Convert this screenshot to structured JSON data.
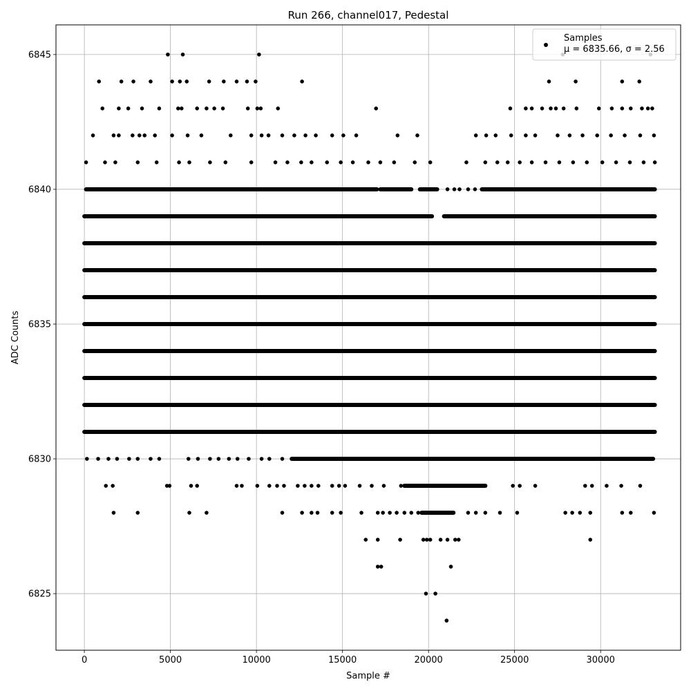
{
  "chart_data": {
    "type": "scatter",
    "title": "Run 266, channel017, Pedestal",
    "xlabel": "Sample #",
    "ylabel": "ADC Counts",
    "xlim": [
      -1650,
      34650
    ],
    "ylim": [
      6822.9,
      6846.1
    ],
    "x_ticks": [
      0,
      5000,
      10000,
      15000,
      20000,
      25000,
      30000
    ],
    "x_tick_labels": [
      "0",
      "5000",
      "10000",
      "15000",
      "20000",
      "25000",
      "30000"
    ],
    "y_ticks": [
      6825,
      6830,
      6835,
      6840,
      6845
    ],
    "y_tick_labels": [
      "6825",
      "6830",
      "6835",
      "6840",
      "6845"
    ],
    "grid": true,
    "legend_position": "top-right",
    "marker_color": "#000000",
    "series": [
      {
        "name": "Samples",
        "n_samples": 33000,
        "band_segments": [
          {
            "y": 6845,
            "x": [
              4850,
              5720,
              10150,
              27800,
              32900
            ]
          },
          {
            "y": 6844,
            "x": [
              850,
              2150,
              2850,
              3850,
              5100,
              5550,
              5950,
              7250,
              8100,
              8850,
              9450,
              9950,
              12650,
              27000,
              28550,
              31250,
              32250
            ]
          },
          {
            "y": 6843,
            "x": [
              1050,
              2000,
              2550,
              3350,
              4350,
              5450,
              5650,
              6550,
              7100,
              7550,
              8050,
              9500,
              10050,
              10250,
              11250,
              16950,
              24750,
              25650,
              26000,
              26600,
              27100,
              27400,
              27850,
              28600,
              29900,
              30650,
              31250,
              31750,
              32400,
              32750,
              33000
            ]
          },
          {
            "y": 6842,
            "x": [
              500,
              1700,
              2000,
              2800,
              3200,
              3500,
              4100,
              5100,
              6000,
              6800,
              8500,
              9700,
              10300,
              10700,
              11500,
              12200,
              12850,
              13450,
              14400,
              15050,
              15800,
              18200,
              19350,
              22750,
              23350,
              23900,
              24800,
              25650,
              26200,
              27500,
              28200,
              28950,
              29800,
              30600,
              31400,
              32300,
              33100
            ]
          },
          {
            "y": 6841,
            "x": [
              100,
              1200,
              1800,
              3100,
              4200,
              5500,
              6100,
              7300,
              8200,
              9700,
              11100,
              11800,
              12600,
              13200,
              14100,
              14900,
              15600,
              16500,
              17200,
              18000,
              19200,
              20100,
              22200,
              23300,
              24000,
              24600,
              25300,
              26000,
              26800,
              27600,
              28400,
              29200,
              30100,
              30900,
              31700,
              32500,
              33150
            ]
          },
          {
            "y": 6840,
            "x": [
              [
                100,
                17000
              ],
              [
                17200,
                19000
              ],
              [
                19500,
                20500
              ],
              21100,
              21500,
              21800,
              22300,
              22700,
              [
                23100,
                33150
              ]
            ]
          },
          {
            "y": 6839,
            "x": [
              [
                0,
                20200
              ],
              [
                20900,
                33150
              ]
            ]
          },
          {
            "y": 6838,
            "x": [
              [
                0,
                33150
              ]
            ]
          },
          {
            "y": 6837,
            "x": [
              [
                0,
                33150
              ]
            ]
          },
          {
            "y": 6836,
            "x": [
              [
                0,
                33150
              ]
            ]
          },
          {
            "y": 6835,
            "x": [
              [
                0,
                33150
              ]
            ]
          },
          {
            "y": 6834,
            "x": [
              [
                0,
                33150
              ]
            ]
          },
          {
            "y": 6833,
            "x": [
              [
                0,
                33150
              ]
            ]
          },
          {
            "y": 6832,
            "x": [
              [
                0,
                33150
              ]
            ]
          },
          {
            "y": 6831,
            "x": [
              [
                0,
                33150
              ]
            ]
          },
          {
            "y": 6830,
            "x": [
              150,
              800,
              1400,
              1900,
              2600,
              3100,
              3850,
              4350,
              6050,
              6600,
              7300,
              7800,
              8400,
              8900,
              9550,
              10300,
              10750,
              11500,
              [
                12050,
                33050
              ]
            ]
          },
          {
            "y": 6829,
            "x": [
              1250,
              1650,
              4800,
              4950,
              6200,
              6550,
              8850,
              9150,
              10050,
              10750,
              11200,
              11600,
              12400,
              12800,
              13200,
              13600,
              14400,
              14800,
              15150,
              16000,
              16700,
              17400,
              18400,
              [
                18600,
                23300
              ],
              24900,
              25300,
              26200,
              29100,
              29500,
              30350,
              31200,
              32300
            ]
          },
          {
            "y": 6828,
            "x": [
              1700,
              3100,
              6100,
              7100,
              11500,
              12650,
              13200,
              13550,
              14400,
              14900,
              16100,
              17050,
              17350,
              17750,
              18150,
              18600,
              19000,
              19400,
              [
                19600,
                21450
              ],
              22300,
              22750,
              23300,
              24150,
              25150,
              27950,
              28350,
              28800,
              29400,
              31250,
              31750,
              33100
            ]
          },
          {
            "y": 6827,
            "x": [
              16350,
              17050,
              18350,
              19700,
              19900,
              20100,
              20700,
              21100,
              21550,
              21750,
              29400
            ]
          },
          {
            "y": 6826,
            "x": [
              17050,
              17250,
              21300
            ]
          },
          {
            "y": 6825,
            "x": [
              19850,
              20400
            ]
          },
          {
            "y": 6824,
            "x": [
              21050
            ]
          }
        ]
      }
    ],
    "legend": {
      "entries": [
        "Samples",
        "μ = 6835.66, σ = 2.56"
      ]
    }
  }
}
